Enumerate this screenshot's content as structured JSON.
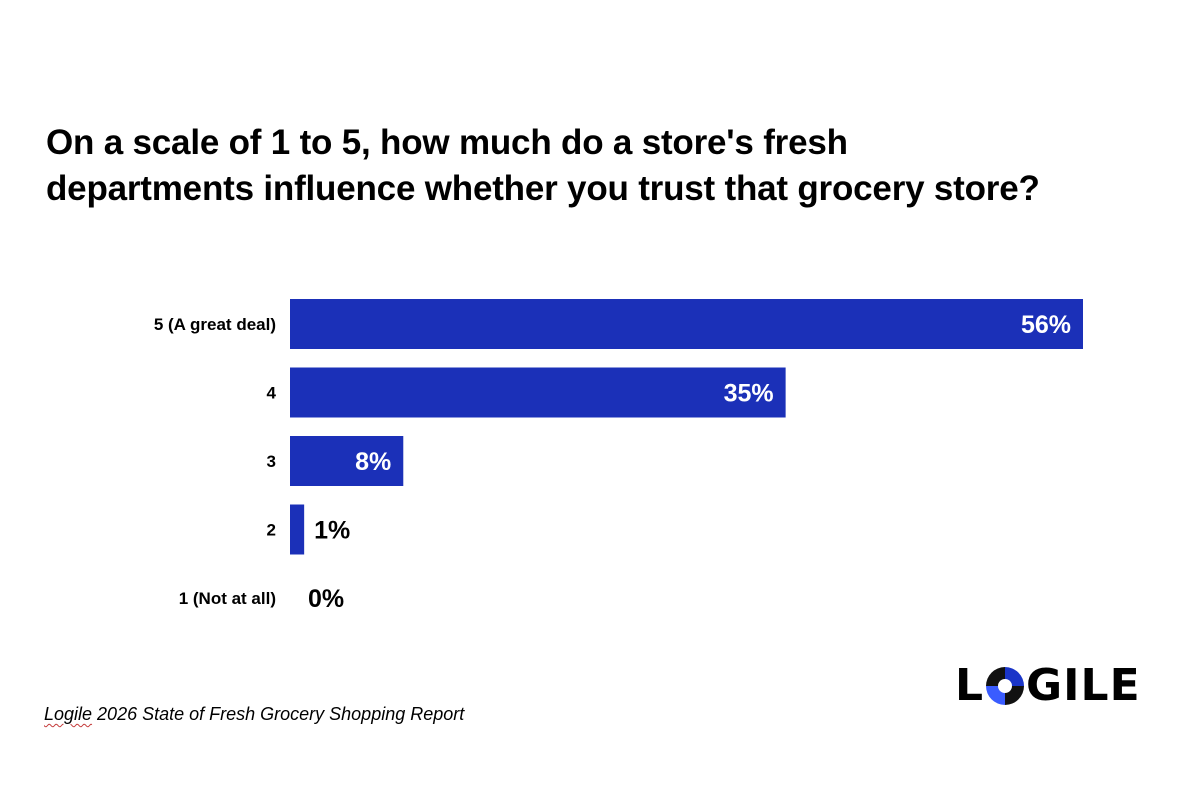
{
  "title": {
    "line1": "On a scale of 1 to 5, how much do a store's fresh",
    "line2": "departments influence whether you trust that grocery store?"
  },
  "source": {
    "brand": "Logile",
    "rest": " 2026 State of Fresh Grocery Shopping Report"
  },
  "logo": {
    "left": "L",
    "o_icon": "logo-o-icon",
    "right": "GILE"
  },
  "colors": {
    "bar": "#1b30b8",
    "value_inside": "#ffffff",
    "value_outside": "#000000"
  },
  "chart_data": {
    "type": "bar",
    "orientation": "horizontal",
    "categories": [
      "5 (A great deal)",
      "4",
      "3",
      "2",
      "1 (Not at all)"
    ],
    "values": [
      56,
      35,
      8,
      1,
      0
    ],
    "value_labels": [
      "56%",
      "35%",
      "8%",
      "1%",
      "0%"
    ],
    "unit": "%",
    "xlim": [
      0,
      56
    ],
    "grid": false,
    "legend": "none"
  }
}
